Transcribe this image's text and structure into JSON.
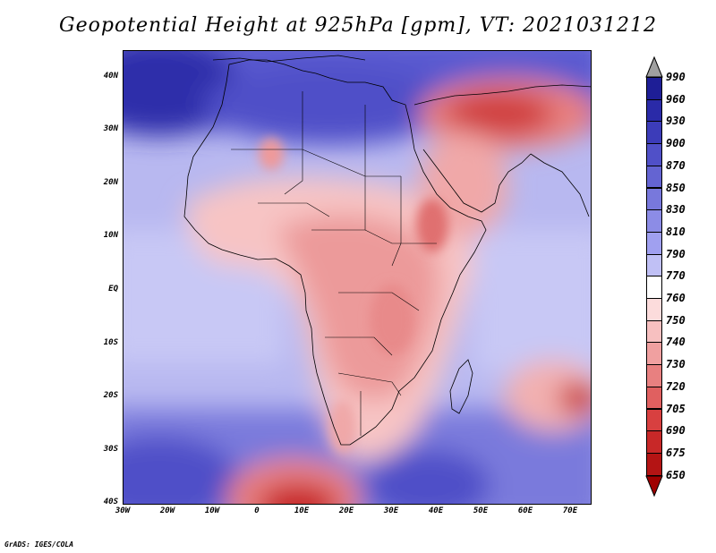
{
  "title": "Geopotential Height at 925hPa [gpm], VT: 2021031212",
  "footer": "GrADS: IGES/COLA",
  "map": {
    "lon_range": [
      -30,
      75
    ],
    "lat_range": [
      -40,
      45
    ],
    "y_axis_labels": [
      "40N",
      "30N",
      "20N",
      "10N",
      "EQ",
      "10S",
      "20S",
      "30S",
      "40S"
    ],
    "x_axis_labels": [
      "30W",
      "20W",
      "10W",
      "0",
      "10E",
      "20E",
      "30E",
      "40E",
      "50E",
      "60E",
      "70E"
    ],
    "features": [
      {
        "name": "high-north-atlantic",
        "lon": -25,
        "lat": 36,
        "value": "930"
      },
      {
        "name": "low-middle-east",
        "lon": 52,
        "lat": 33,
        "value": "720"
      },
      {
        "name": "low-southern-africa",
        "lon": 27,
        "lat": -25,
        "value": "740"
      },
      {
        "name": "low-south-atlantic",
        "lon": 8,
        "lat": -39,
        "value": "705"
      },
      {
        "name": "low-madagascar-east",
        "lon": 72,
        "lat": -20,
        "value": "705"
      },
      {
        "name": "high-south-indian-ocean",
        "lon": 38,
        "lat": -38,
        "value": "870"
      }
    ]
  },
  "colorbar": {
    "levels": [
      "990",
      "960",
      "930",
      "900",
      "870",
      "850",
      "830",
      "810",
      "790",
      "770",
      "760",
      "750",
      "740",
      "730",
      "720",
      "705",
      "690",
      "675",
      "650"
    ],
    "colors": [
      "#a0a0a0",
      "#1e1e96",
      "#2a2aa8",
      "#3c3cb9",
      "#5050c8",
      "#6464d2",
      "#7878dc",
      "#8c8ce6",
      "#a0a0f0",
      "#c0c0f5",
      "#ffffff",
      "#fcdcdc",
      "#f7c0c0",
      "#f0a0a0",
      "#e88080",
      "#e06060",
      "#d84040",
      "#c82828",
      "#b41414",
      "#a00000"
    ]
  }
}
